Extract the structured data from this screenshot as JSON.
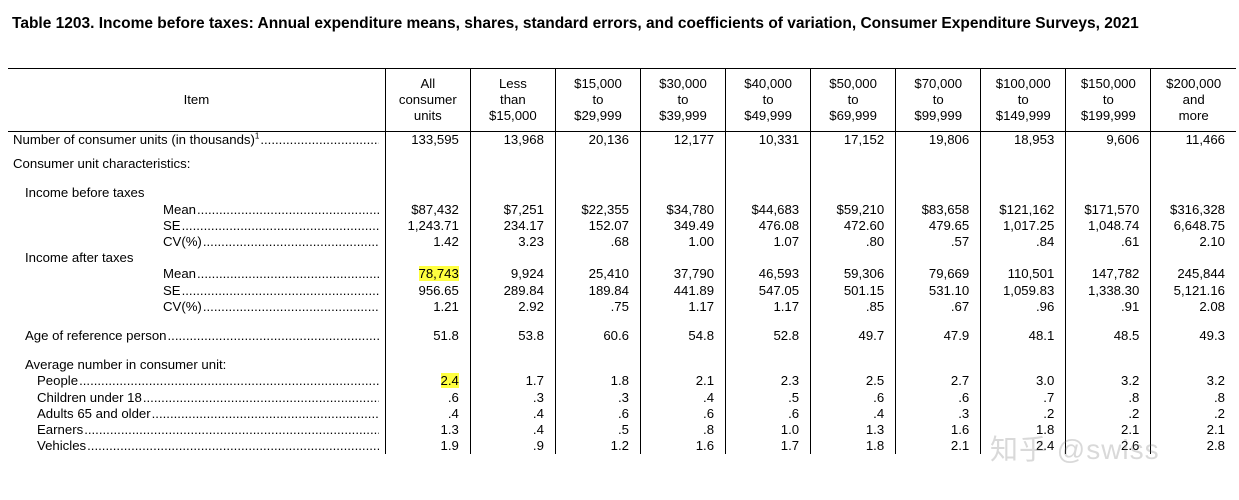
{
  "title": "Table 1203. Income before taxes: Annual expenditure means, shares, standard errors, and coefficients of variation, Consumer Expenditure Surveys, 2021",
  "columns": [
    "Item",
    "All consumer units",
    "Less than $15,000",
    "$15,000 to $29,999",
    "$30,000 to $39,999",
    "$40,000 to $49,999",
    "$50,000 to $69,999",
    "$70,000 to $99,999",
    "$100,000 to $149,999",
    "$150,000 to $199,999",
    "$200,000 and more"
  ],
  "column_lines": [
    [
      "Item"
    ],
    [
      "All",
      "consumer",
      "units"
    ],
    [
      "Less",
      "than",
      "$15,000"
    ],
    [
      "$15,000",
      "to",
      "$29,999"
    ],
    [
      "$30,000",
      "to",
      "$39,999"
    ],
    [
      "$40,000",
      "to",
      "$49,999"
    ],
    [
      "$50,000",
      "to",
      "$69,999"
    ],
    [
      "$70,000",
      "to",
      "$99,999"
    ],
    [
      "$100,000",
      "to",
      "$149,999"
    ],
    [
      "$150,000",
      "to",
      "$199,999"
    ],
    [
      "$200,000",
      "and",
      "more"
    ]
  ],
  "rows": [
    {
      "label": "Number of consumer units (in thousands)",
      "sup": "1",
      "indent": 1,
      "dots": true,
      "values": [
        "133,595",
        "13,968",
        "20,136",
        "12,177",
        "10,331",
        "17,152",
        "19,806",
        "18,953",
        "9,606",
        "11,466"
      ]
    },
    {
      "gap": 1
    },
    {
      "label": "Consumer unit characteristics:",
      "indent": 1,
      "dots": false,
      "values": []
    },
    {
      "gap": 2
    },
    {
      "label": "Income before taxes",
      "indent": 2,
      "dots": false,
      "values": []
    },
    {
      "label": "Mean",
      "indent": "M",
      "dots": true,
      "values": [
        "$87,432",
        "$7,251",
        "$22,355",
        "$34,780",
        "$44,683",
        "$59,210",
        "$83,658",
        "$121,162",
        "$171,570",
        "$316,328"
      ]
    },
    {
      "label": "SE",
      "indent": "M",
      "dots": true,
      "values": [
        "1,243.71",
        "234.17",
        "152.07",
        "349.49",
        "476.08",
        "472.60",
        "479.65",
        "1,017.25",
        "1,048.74",
        "6,648.75"
      ]
    },
    {
      "label": "CV(%)",
      "indent": "M",
      "dots": true,
      "values": [
        "1.42",
        "3.23",
        ".68",
        "1.00",
        "1.07",
        ".80",
        ".57",
        ".84",
        ".61",
        "2.10"
      ]
    },
    {
      "label": "Income after taxes",
      "indent": 2,
      "dots": false,
      "values": []
    },
    {
      "label": "Mean",
      "indent": "M",
      "dots": true,
      "highlight": [
        0
      ],
      "values": [
        "78,743",
        "9,924",
        "25,410",
        "37,790",
        "46,593",
        "59,306",
        "79,669",
        "110,501",
        "147,782",
        "245,844"
      ]
    },
    {
      "label": "SE",
      "indent": "M",
      "dots": true,
      "values": [
        "956.65",
        "289.84",
        "189.84",
        "441.89",
        "547.05",
        "501.15",
        "531.10",
        "1,059.83",
        "1,338.30",
        "5,121.16"
      ]
    },
    {
      "label": "CV(%)",
      "indent": "M",
      "dots": true,
      "values": [
        "1.21",
        "2.92",
        ".75",
        "1.17",
        "1.17",
        ".85",
        ".67",
        ".96",
        ".91",
        "2.08"
      ]
    },
    {
      "gap": 2
    },
    {
      "label": "Age of reference person",
      "indent": 2,
      "dots": true,
      "values": [
        "51.8",
        "53.8",
        "60.6",
        "54.8",
        "52.8",
        "49.7",
        "47.9",
        "48.1",
        "48.5",
        "49.3"
      ]
    },
    {
      "gap": 2
    },
    {
      "label": "Average number in consumer unit:",
      "indent": 2,
      "dots": false,
      "values": []
    },
    {
      "label": "People",
      "indent": 3,
      "dots": true,
      "highlight": [
        0
      ],
      "values": [
        "2.4",
        "1.7",
        "1.8",
        "2.1",
        "2.3",
        "2.5",
        "2.7",
        "3.0",
        "3.2",
        "3.2"
      ]
    },
    {
      "label": "Children under 18",
      "indent": 3,
      "dots": true,
      "values": [
        ".6",
        ".3",
        ".3",
        ".4",
        ".5",
        ".6",
        ".6",
        ".7",
        ".8",
        ".8"
      ]
    },
    {
      "label": "Adults 65 and older",
      "indent": 3,
      "dots": true,
      "values": [
        ".4",
        ".4",
        ".6",
        ".6",
        ".6",
        ".4",
        ".3",
        ".2",
        ".2",
        ".2"
      ]
    },
    {
      "label": "Earners",
      "indent": 3,
      "dots": true,
      "values": [
        "1.3",
        ".4",
        ".5",
        ".8",
        "1.0",
        "1.3",
        "1.6",
        "1.8",
        "2.1",
        "2.1"
      ]
    },
    {
      "label": "Vehicles",
      "indent": 3,
      "dots": true,
      "values": [
        "1.9",
        ".9",
        "1.2",
        "1.6",
        "1.7",
        "1.8",
        "2.1",
        "2.4",
        "2.6",
        "2.8"
      ]
    }
  ],
  "watermark": "知乎 @swiss",
  "colors": {
    "highlight": "#ffff40",
    "rule": "#000000",
    "text": "#000000"
  }
}
